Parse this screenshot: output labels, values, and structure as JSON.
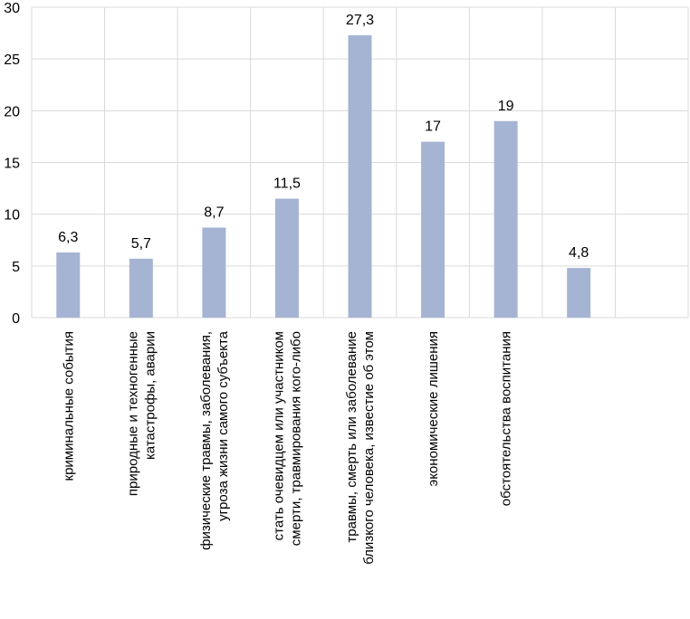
{
  "chart_data": {
    "type": "bar",
    "title": "",
    "xlabel": "",
    "ylabel": "",
    "ylim": [
      0,
      30
    ],
    "yticks": [
      0,
      5,
      10,
      15,
      20,
      25,
      30
    ],
    "grid": true,
    "categories": [
      [
        "криминальные события"
      ],
      [
        "природные и техногенные",
        "катастрофы, аварии"
      ],
      [
        "физические травмы, заболевания,",
        "угроза жизни самого субъекта"
      ],
      [
        "стать очевидцем или участником",
        "смерти, травмирования кого-либо"
      ],
      [
        "травмы, смерть или заболевание",
        "близкого человека, известие об этом"
      ],
      [
        "экономические лишения"
      ],
      [
        "обстоятельства воспитания"
      ],
      [
        ""
      ],
      [
        ""
      ]
    ],
    "values": [
      6.3,
      5.7,
      8.7,
      11.5,
      27.3,
      17,
      19,
      4.8,
      null
    ],
    "value_labels": [
      "6,3",
      "5,7",
      "8,7",
      "11,5",
      "27,3",
      "17",
      "19",
      "4,8",
      ""
    ],
    "colors": {
      "bar": "#a5b4d3",
      "grid": "#d9d9d9",
      "axis": "#d9d9d9",
      "text": "#000000"
    }
  }
}
